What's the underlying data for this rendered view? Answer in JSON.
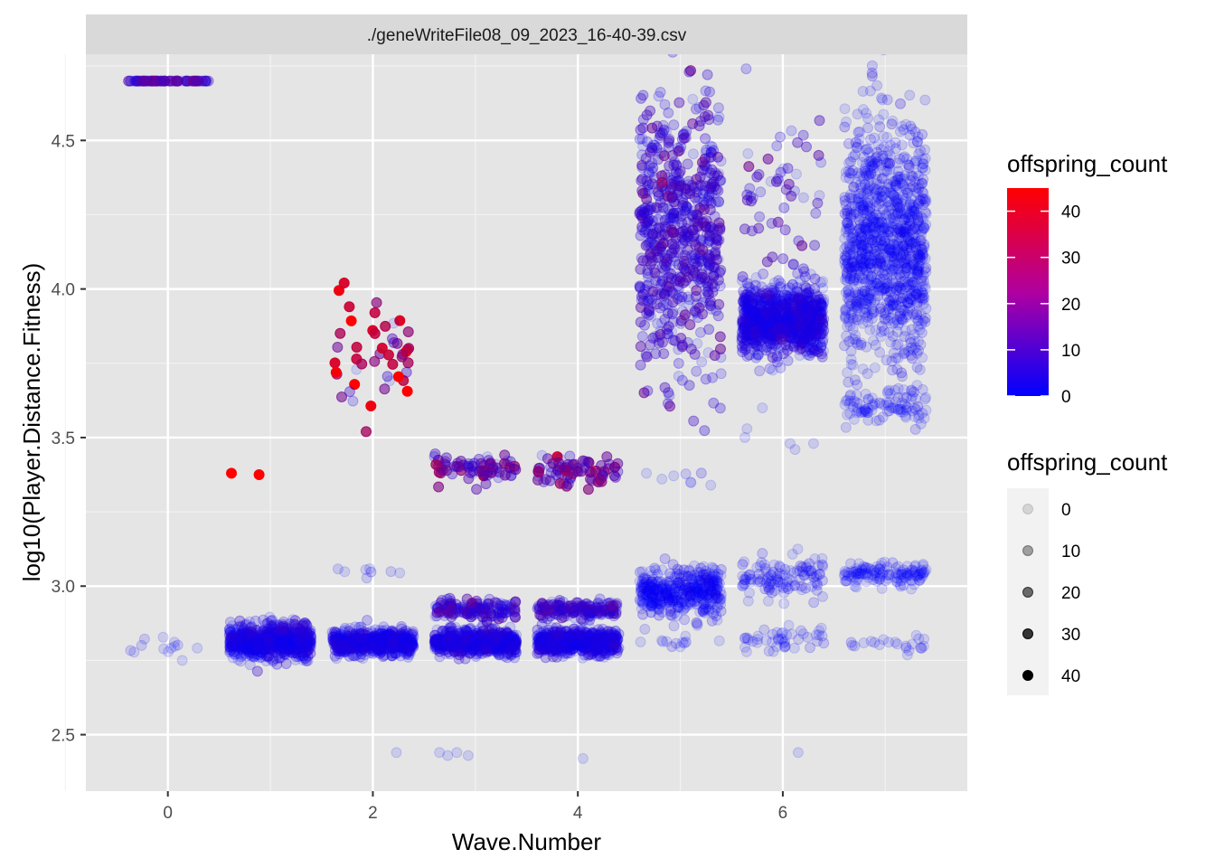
{
  "chart_data": {
    "type": "scatter",
    "strip_title": "./geneWriteFile08_09_2023_16-40-39.csv",
    "xlabel": "Wave.Number",
    "ylabel": "log10(Player.Distance.Fitness)",
    "xlim": [
      -0.8,
      7.8
    ],
    "ylim": [
      2.31,
      4.79
    ],
    "x_ticks": [
      0,
      2,
      4,
      6
    ],
    "y_ticks": [
      2.5,
      3.0,
      3.5,
      4.0,
      4.5
    ],
    "x_tick_labels": [
      "0",
      "2",
      "4",
      "6"
    ],
    "y_tick_labels": [
      "2.5",
      "3.0",
      "3.5",
      "4.0",
      "4.5"
    ],
    "panel_background": "#e5e5e5",
    "grid": true,
    "jitter_width": 0.4,
    "color_scale": {
      "title": "offspring_count",
      "low": "#0000ff",
      "high": "#ff0000",
      "limits": [
        0,
        45
      ],
      "breaks": [
        0,
        10,
        20,
        30,
        40
      ],
      "labels": [
        "0",
        "10",
        "20",
        "30",
        "40"
      ],
      "legend_order": [
        "40",
        "30",
        "20",
        "10",
        "0"
      ]
    },
    "alpha_scale": {
      "title": "offspring_count",
      "breaks": [
        0,
        10,
        20,
        30,
        40
      ],
      "labels": [
        "0",
        "10",
        "20",
        "30",
        "40"
      ]
    },
    "clusters": [
      {
        "wave": 0,
        "y": 4.7,
        "ysd": 0.0,
        "n": 60,
        "offspring": 11,
        "xspread": 0.4
      },
      {
        "wave": 0,
        "y": 2.8,
        "ysd": 0.02,
        "n": 12,
        "offspring": 0,
        "xspread": 0.4
      },
      {
        "wave": 1,
        "y": 2.81,
        "ysd": 0.025,
        "n": 650,
        "offspring": 3,
        "xspread": 0.4
      },
      {
        "wave": 1,
        "y": 2.87,
        "ysd": 0.015,
        "n": 40,
        "offspring": 6,
        "xspread": 0.4
      },
      {
        "wave": 2,
        "y": 3.77,
        "ysd": 0.08,
        "n": 42,
        "offspring": 26,
        "xspread": 0.38
      },
      {
        "wave": 2,
        "y": 3.05,
        "ysd": 0.01,
        "n": 8,
        "offspring": 2,
        "xspread": 0.35
      },
      {
        "wave": 2,
        "y": 2.81,
        "ysd": 0.02,
        "n": 620,
        "offspring": 3,
        "xspread": 0.4
      },
      {
        "wave": 3,
        "y": 3.4,
        "ysd": 0.025,
        "n": 75,
        "offspring": 14,
        "xspread": 0.4
      },
      {
        "wave": 3,
        "y": 2.92,
        "ysd": 0.015,
        "n": 140,
        "offspring": 8,
        "xspread": 0.4
      },
      {
        "wave": 3,
        "y": 2.81,
        "ysd": 0.02,
        "n": 620,
        "offspring": 4,
        "xspread": 0.4
      },
      {
        "wave": 4,
        "y": 3.39,
        "ysd": 0.025,
        "n": 70,
        "offspring": 14,
        "xspread": 0.4
      },
      {
        "wave": 4,
        "y": 2.92,
        "ysd": 0.015,
        "n": 140,
        "offspring": 8,
        "xspread": 0.4
      },
      {
        "wave": 4,
        "y": 2.81,
        "ysd": 0.02,
        "n": 620,
        "offspring": 4,
        "xspread": 0.4
      },
      {
        "wave": 5,
        "y": 4.2,
        "ysd": 0.22,
        "n": 650,
        "offspring": 8,
        "xspread": 0.4
      },
      {
        "wave": 5,
        "y": 3.36,
        "ysd": 0.015,
        "n": 5,
        "offspring": 0,
        "xspread": 0.3
      },
      {
        "wave": 5,
        "y": 2.98,
        "ysd": 0.04,
        "n": 420,
        "offspring": 1,
        "xspread": 0.4
      },
      {
        "wave": 5,
        "y": 2.81,
        "ysd": 0.01,
        "n": 12,
        "offspring": 0,
        "xspread": 0.4
      },
      {
        "wave": 6,
        "y": 3.9,
        "ysd": 0.06,
        "n": 900,
        "offspring": 4,
        "xspread": 0.4
      },
      {
        "wave": 6,
        "y": 4.35,
        "ysd": 0.15,
        "n": 55,
        "offspring": 9,
        "xspread": 0.38
      },
      {
        "wave": 6,
        "y": 3.03,
        "ysd": 0.035,
        "n": 110,
        "offspring": 1,
        "xspread": 0.4
      },
      {
        "wave": 6,
        "y": 2.82,
        "ysd": 0.02,
        "n": 45,
        "offspring": 0,
        "xspread": 0.4
      },
      {
        "wave": 7,
        "y": 4.15,
        "ysd": 0.2,
        "n": 1100,
        "offspring": 1,
        "xspread": 0.4
      },
      {
        "wave": 7,
        "y": 3.6,
        "ysd": 0.03,
        "n": 85,
        "offspring": 0,
        "xspread": 0.4
      },
      {
        "wave": 7,
        "y": 3.04,
        "ysd": 0.02,
        "n": 130,
        "offspring": 0,
        "xspread": 0.4
      },
      {
        "wave": 7,
        "y": 2.8,
        "ysd": 0.015,
        "n": 22,
        "offspring": 0,
        "xspread": 0.4
      }
    ],
    "highlight_points": [
      {
        "x": 0.62,
        "y": 3.38,
        "offspring": 45
      },
      {
        "x": 0.89,
        "y": 3.375,
        "offspring": 45
      },
      {
        "x": 1.67,
        "y": 3.995,
        "offspring": 42
      },
      {
        "x": 1.72,
        "y": 4.02,
        "offspring": 38
      },
      {
        "x": 1.77,
        "y": 3.94,
        "offspring": 36
      },
      {
        "x": 2.02,
        "y": 3.92,
        "offspring": 34
      },
      {
        "x": 2.02,
        "y": 3.85,
        "offspring": 34
      },
      {
        "x": 2.35,
        "y": 3.8,
        "offspring": 30
      }
    ],
    "outliers": [
      {
        "x": 2.23,
        "y": 2.44,
        "offspring": 0
      },
      {
        "x": 2.65,
        "y": 2.44,
        "offspring": 0
      },
      {
        "x": 2.73,
        "y": 2.43,
        "offspring": 0
      },
      {
        "x": 2.82,
        "y": 2.44,
        "offspring": 0
      },
      {
        "x": 2.93,
        "y": 2.43,
        "offspring": 0
      },
      {
        "x": 4.05,
        "y": 2.42,
        "offspring": 0
      },
      {
        "x": 6.15,
        "y": 2.44,
        "offspring": 0
      },
      {
        "x": 4.67,
        "y": 3.38,
        "offspring": 0
      },
      {
        "x": 5.1,
        "y": 3.35,
        "offspring": 0
      },
      {
        "x": 4.82,
        "y": 3.36,
        "offspring": 0
      },
      {
        "x": 5.65,
        "y": 3.53,
        "offspring": 0
      },
      {
        "x": 5.63,
        "y": 3.5,
        "offspring": 0
      },
      {
        "x": 5.8,
        "y": 3.6,
        "offspring": 0
      },
      {
        "x": 6.12,
        "y": 3.46,
        "offspring": 0
      },
      {
        "x": 6.07,
        "y": 3.48,
        "offspring": 0
      },
      {
        "x": 6.3,
        "y": 3.48,
        "offspring": 0
      },
      {
        "x": 0.14,
        "y": 2.75,
        "offspring": 0
      }
    ]
  }
}
